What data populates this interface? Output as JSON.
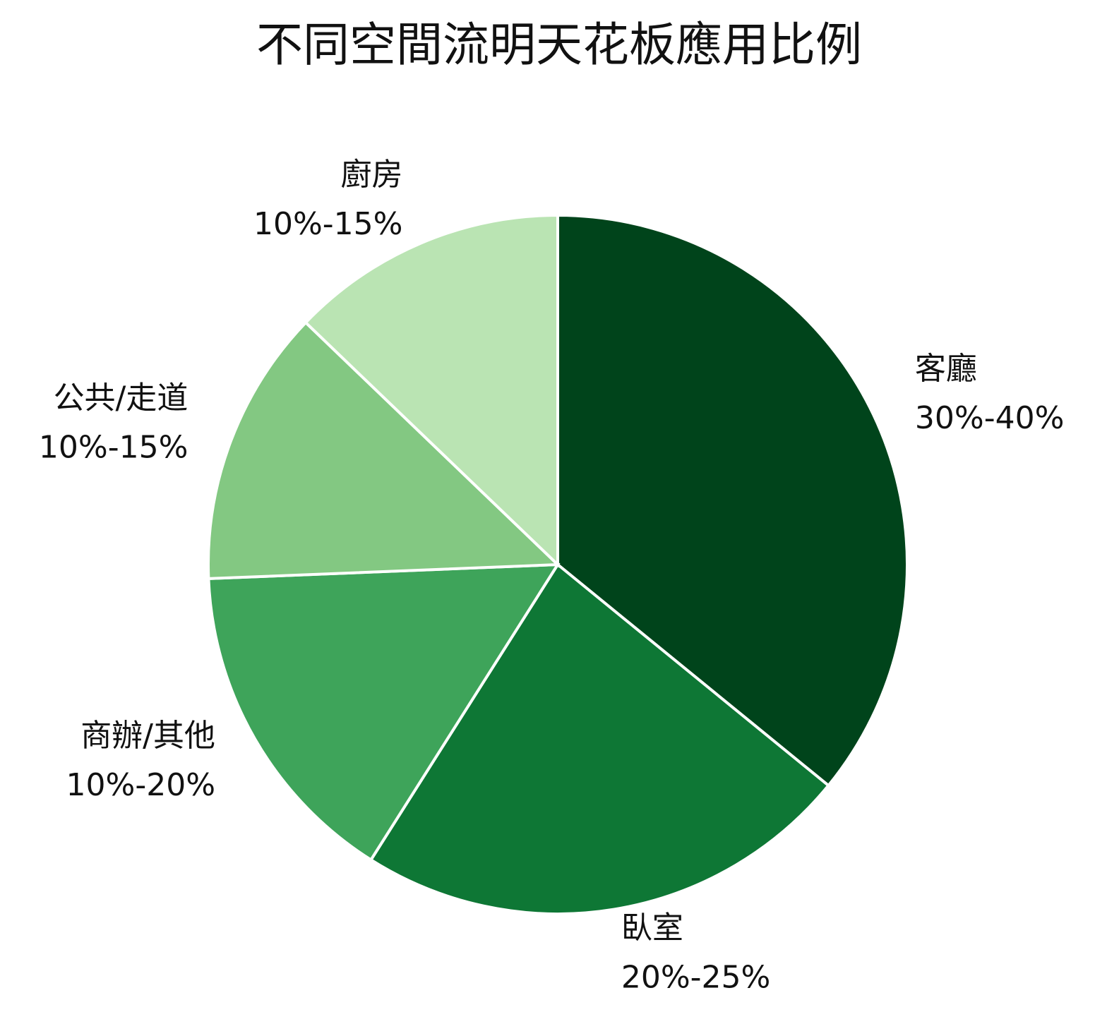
{
  "chart_data": {
    "type": "pie",
    "title": "不同空間流明天花板應用比例",
    "categories": [
      "客廳",
      "臥室",
      "商辦/其他",
      "公共/走道",
      "廚房"
    ],
    "values": [
      35,
      22.5,
      15,
      12.5,
      12.5
    ],
    "value_labels": [
      "30%-40%",
      "20%-25%",
      "10%-20%",
      "10%-15%",
      "10%-15%"
    ],
    "colors": [
      "#00441b",
      "#0e7735",
      "#3ea45a",
      "#83c882",
      "#bae4b3"
    ]
  }
}
